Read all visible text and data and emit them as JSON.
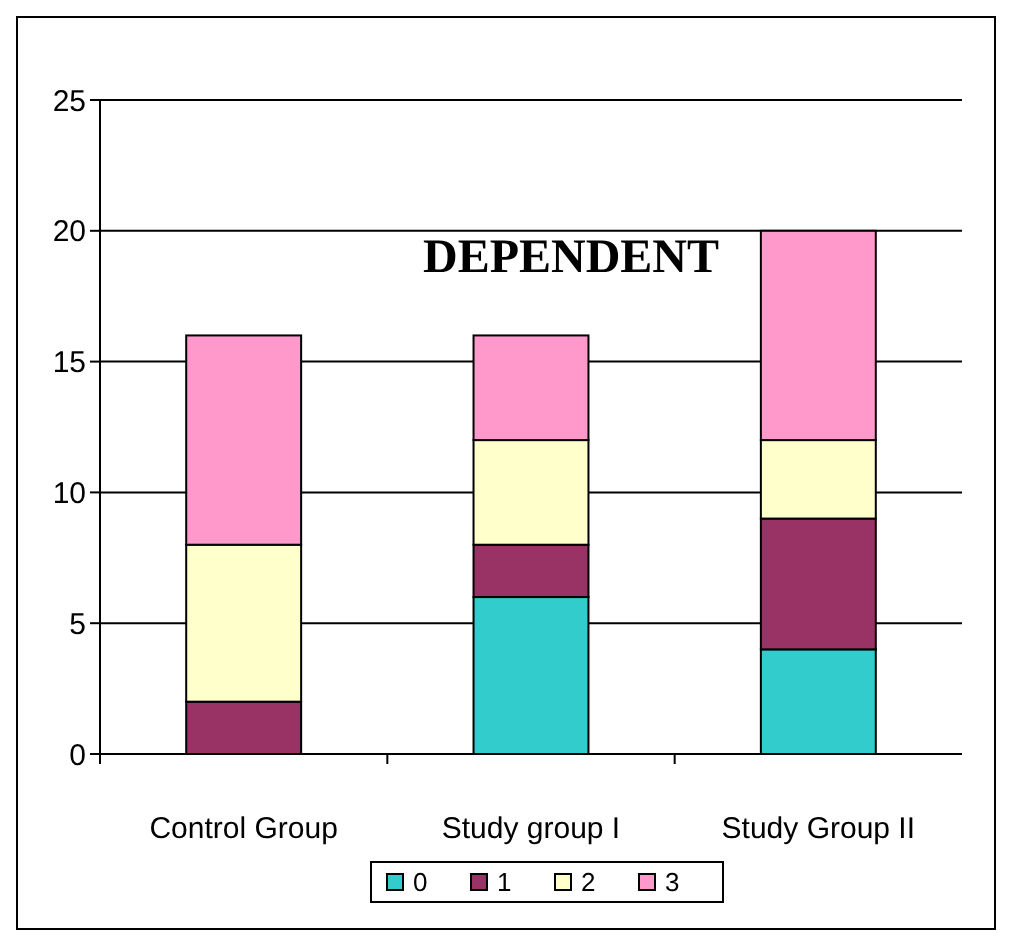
{
  "chart_data": {
    "type": "bar",
    "title": "DEPENDENT",
    "categories": [
      "Control Group",
      "Study group I",
      "Study Group II"
    ],
    "stacked": true,
    "series": [
      {
        "name": "0",
        "color": "#33cccc",
        "values": [
          0,
          6,
          4
        ]
      },
      {
        "name": "1",
        "color": "#993366",
        "values": [
          2,
          2,
          5
        ]
      },
      {
        "name": "2",
        "color": "#ffffcc",
        "values": [
          6,
          4,
          3
        ]
      },
      {
        "name": "3",
        "color": "#ff99cc",
        "values": [
          8,
          4,
          8
        ]
      }
    ],
    "ylim": [
      0,
      25
    ],
    "yticks": [
      0,
      5,
      10,
      15,
      20,
      25
    ],
    "grid": "y",
    "legend": "bottom"
  }
}
